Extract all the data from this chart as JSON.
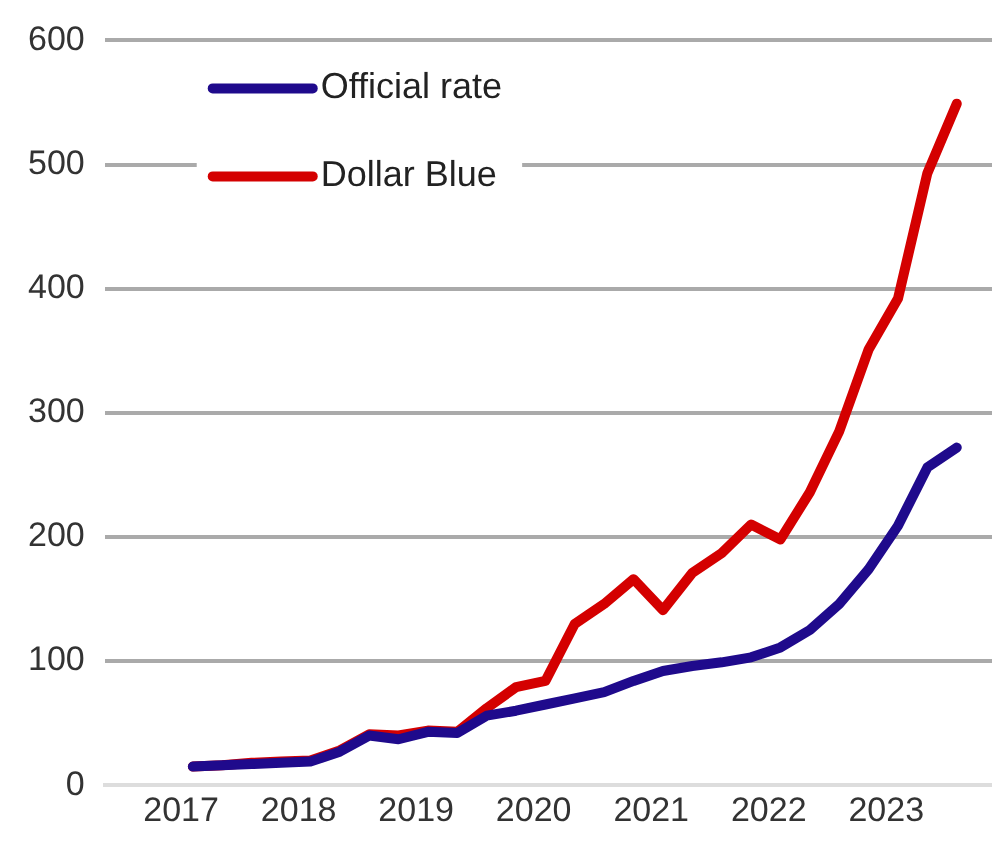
{
  "chart_data": {
    "type": "line",
    "x": [
      2017.1,
      2017.35,
      2017.6,
      2017.85,
      2018.1,
      2018.35,
      2018.6,
      2018.85,
      2019.1,
      2019.35,
      2019.6,
      2019.85,
      2020.1,
      2020.35,
      2020.6,
      2020.85,
      2021.1,
      2021.35,
      2021.6,
      2021.85,
      2022.1,
      2022.35,
      2022.6,
      2022.85,
      2023.1,
      2023.35,
      2023.6
    ],
    "series": [
      {
        "name": "Official rate",
        "color": "#1f0a8c",
        "values": [
          15,
          16,
          17,
          18,
          19,
          27,
          40,
          37,
          43,
          42,
          56,
          60,
          65,
          70,
          75,
          84,
          92,
          96,
          99,
          103,
          111,
          125,
          146,
          174,
          209,
          256,
          272
        ]
      },
      {
        "name": "Dollar Blue",
        "color": "#d40000",
        "values": [
          15,
          16,
          18,
          19,
          20,
          28,
          41,
          40,
          44,
          43,
          62,
          79,
          84,
          130,
          146,
          166,
          141,
          171,
          187,
          210,
          198,
          236,
          285,
          351,
          392,
          493,
          549
        ]
      }
    ],
    "xlim": [
      2016.35,
      2023.9
    ],
    "xticks": [
      2017,
      2018,
      2019,
      2020,
      2021,
      2022,
      2023
    ],
    "ylim": [
      0,
      600
    ],
    "yticks": [
      0,
      100,
      200,
      300,
      400,
      500,
      600
    ],
    "grid": "y",
    "legend": "top left",
    "marker": "none",
    "line_style": "solid"
  }
}
